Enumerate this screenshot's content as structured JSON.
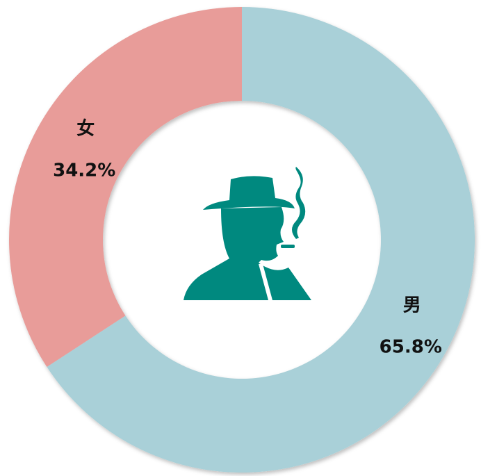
{
  "chart_data": {
    "type": "donut",
    "categories": [
      "男",
      "女"
    ],
    "values": [
      65.8,
      34.2
    ],
    "value_labels": [
      "65.8%",
      "34.2%"
    ],
    "colors": [
      "#a9d0d8",
      "#e89c99"
    ]
  }
}
